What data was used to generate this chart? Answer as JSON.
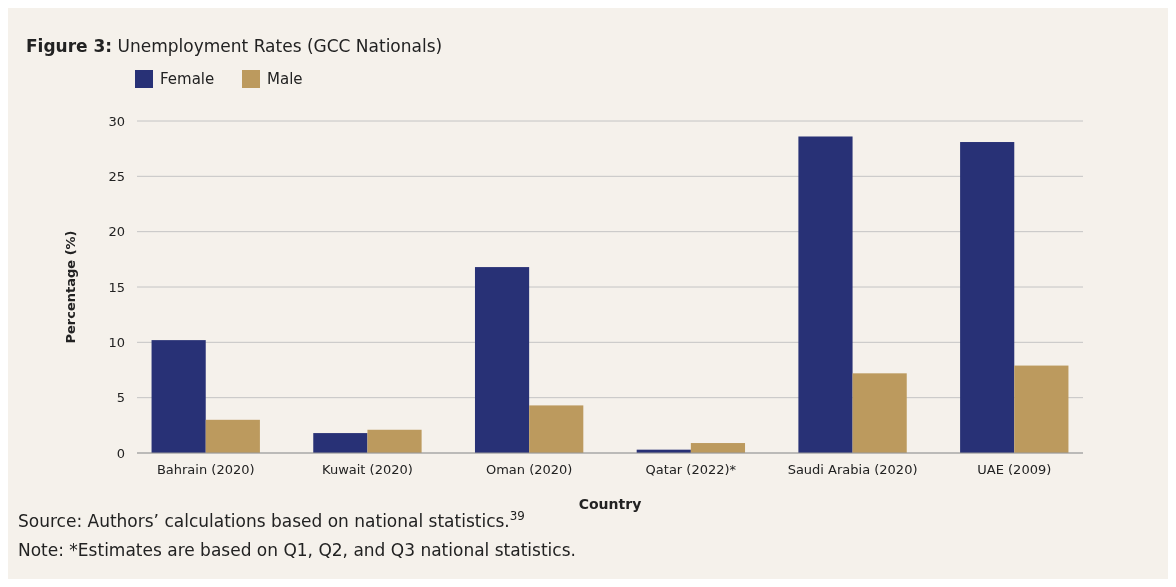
{
  "chart_data": {
    "type": "bar",
    "title": "Figure 3: Unemployment Rates (GCC Nationals)",
    "xlabel": "Country",
    "ylabel": "Percentage (%)",
    "categories": [
      "Bahrain (2020)",
      "Kuwait (2020)",
      "Oman (2020)",
      "Qatar (2022)*",
      "Saudi Arabia (2020)",
      "UAE (2009)"
    ],
    "series": [
      {
        "name": "Female",
        "color": "#283176",
        "values": [
          10.2,
          1.8,
          16.8,
          0.3,
          28.6,
          28.1
        ]
      },
      {
        "name": "Male",
        "color": "#bc9a5e",
        "values": [
          3.0,
          2.1,
          4.3,
          0.9,
          7.2,
          7.9
        ]
      }
    ],
    "ylim": [
      0,
      30
    ],
    "yticks": [
      0,
      5,
      10,
      15,
      20,
      25,
      30
    ],
    "grid": "y",
    "legend": "top left",
    "annotations": [
      "Source: Authors’ calculations based on national statistics.$^{39}$",
      "Note: *Estimates are based on Q1, Q2, and Q3 national statistics."
    ]
  }
}
